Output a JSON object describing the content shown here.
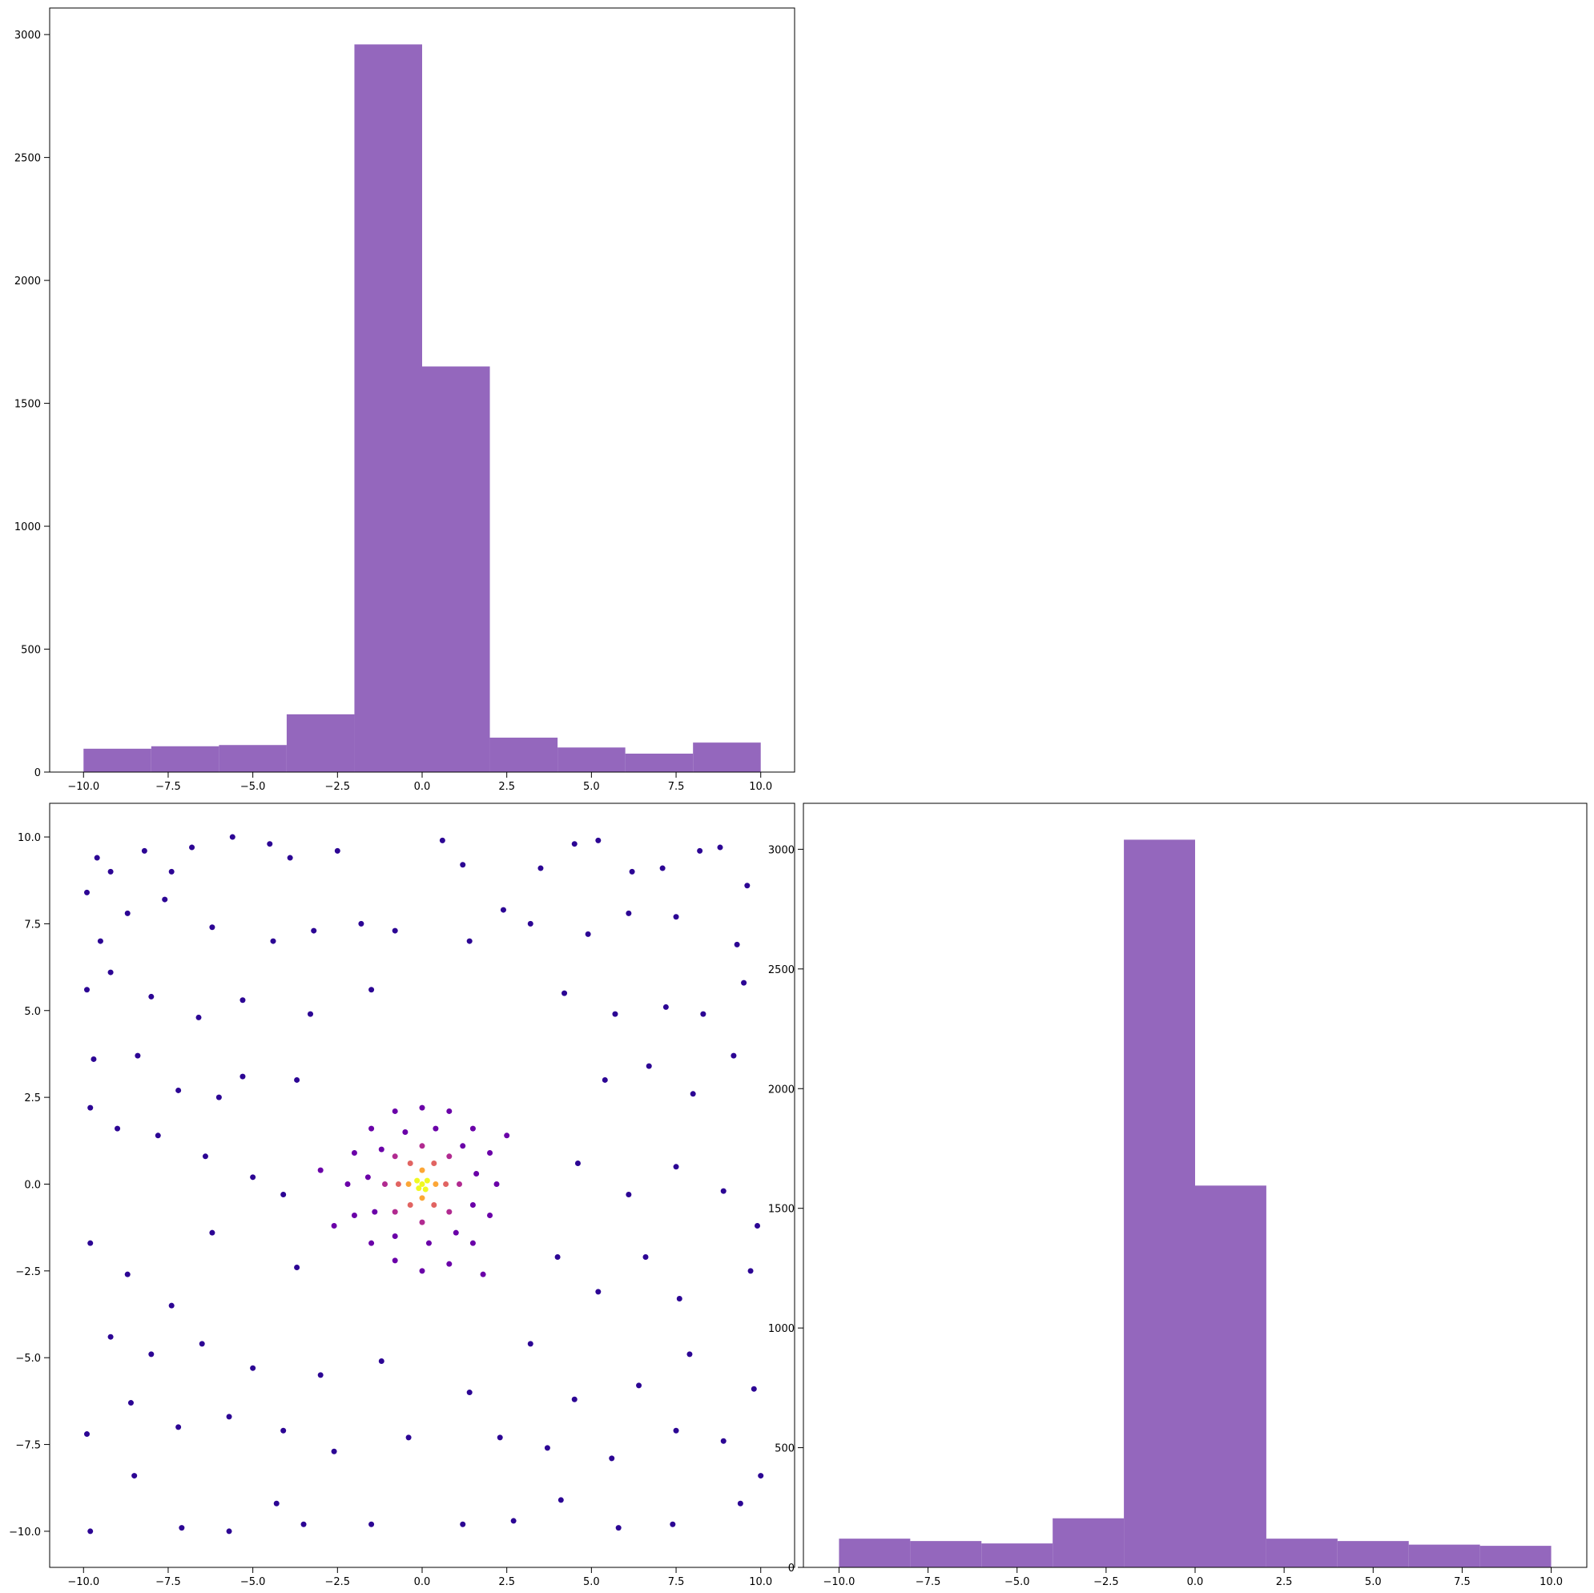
{
  "chart_data": [
    {
      "type": "histogram",
      "color": "#9467bd",
      "bins": [
        -10,
        -8,
        -6,
        -4,
        -2,
        0,
        2,
        4,
        6,
        8,
        10
      ],
      "values": [
        95,
        105,
        110,
        235,
        2960,
        1650,
        140,
        100,
        75,
        120
      ],
      "xlim": [
        -11,
        11
      ],
      "ylim": [
        0,
        3108
      ],
      "xticks": [
        {
          "value": -10,
          "label": "−10.0"
        },
        {
          "value": -7.5,
          "label": "−7.5"
        },
        {
          "value": -5,
          "label": "−5.0"
        },
        {
          "value": -2.5,
          "label": "−2.5"
        },
        {
          "value": 0,
          "label": "0.0"
        },
        2.5,
        {
          "value": 5,
          "label": "5.0"
        },
        7.5,
        {
          "value": 10,
          "label": "10.0"
        }
      ],
      "yticks": [
        0,
        500,
        1000,
        1500,
        2000,
        2500,
        3000
      ]
    },
    {
      "type": "scatter",
      "xlim": [
        -11,
        11
      ],
      "ylim": [
        -11.04,
        10.97
      ],
      "xticks": [
        {
          "value": -10,
          "label": "−10.0"
        },
        {
          "value": -7.5,
          "label": "−7.5"
        },
        {
          "value": -5,
          "label": "−5.0"
        },
        {
          "value": -2.5,
          "label": "−2.5"
        },
        {
          "value": 0,
          "label": "0.0"
        },
        2.5,
        {
          "value": 5,
          "label": "5.0"
        },
        7.5,
        {
          "value": 10,
          "label": "10.0"
        }
      ],
      "yticks": [
        {
          "value": -10,
          "label": "−10.0"
        },
        {
          "value": -7.5,
          "label": "−7.5"
        },
        {
          "value": -5,
          "label": "−5.0"
        },
        {
          "value": -2.5,
          "label": "−2.5"
        },
        {
          "value": 0,
          "label": "0.0"
        },
        2.5,
        {
          "value": 5,
          "label": "5.0"
        },
        7.5,
        {
          "value": 10,
          "label": "10.0"
        }
      ],
      "series": [
        {
          "color": "#2c0594",
          "x": [
            -9.9,
            -9.6,
            -9.2,
            -8.2,
            -7.4,
            -6.8,
            -5.6,
            -4.5,
            -3.9,
            -2.5,
            0.6,
            1.2,
            3.5,
            4.5,
            5.2,
            6.2,
            7.1,
            8.2,
            8.8,
            9.6,
            -9.5,
            -8.7,
            -7.6,
            -6.2,
            -4.4,
            -3.2,
            -1.8,
            -0.8,
            1.4,
            2.4,
            3.2,
            4.9,
            6.1,
            7.5,
            9.3,
            -9.9,
            -9.2,
            -8.0,
            -6.6,
            -5.3,
            -3.3,
            -1.5,
            4.2,
            5.7,
            7.2,
            8.3,
            9.5,
            -9.7,
            -8.4,
            -7.2,
            -6.0,
            -5.3,
            -3.7,
            5.4,
            6.7,
            8.0,
            9.2,
            -9.8,
            -9.0,
            -7.8,
            -6.4,
            -5.0,
            -4.1,
            4.6,
            6.1,
            7.5,
            8.9,
            9.9,
            -9.8,
            -8.7,
            -7.4,
            -6.2,
            -3.7,
            4.0,
            5.2,
            6.6,
            7.6,
            9.7,
            -9.2,
            -8.0,
            -6.5,
            -5.0,
            -3.0,
            -1.2,
            1.4,
            3.2,
            4.5,
            6.4,
            7.9,
            9.8,
            -9.9,
            -8.6,
            -7.2,
            -5.7,
            -4.1,
            -2.6,
            -0.4,
            2.3,
            3.7,
            5.6,
            7.5,
            8.9,
            -9.8,
            -8.5,
            -7.1,
            -5.7,
            -4.3,
            -3.5,
            -1.5,
            1.2,
            2.7,
            4.1,
            5.8,
            7.4,
            9.4,
            10.0
          ],
          "y": [
            8.4,
            9.4,
            9.0,
            9.6,
            9.0,
            9.7,
            10.0,
            9.8,
            9.4,
            9.6,
            9.9,
            9.2,
            9.1,
            9.8,
            9.9,
            9.0,
            9.1,
            9.6,
            9.7,
            8.6,
            7.0,
            7.8,
            8.2,
            7.4,
            7.0,
            7.3,
            7.5,
            7.3,
            7.0,
            7.9,
            7.5,
            7.2,
            7.8,
            7.7,
            6.9,
            5.6,
            6.1,
            5.4,
            4.8,
            5.3,
            4.9,
            5.6,
            5.5,
            4.9,
            5.1,
            4.9,
            5.8,
            3.6,
            3.7,
            2.7,
            2.5,
            3.1,
            3.0,
            3.0,
            3.4,
            2.6,
            3.7,
            2.2,
            1.6,
            1.4,
            0.8,
            0.2,
            -0.3,
            0.6,
            -0.3,
            0.5,
            -0.2,
            -1.2,
            -1.7,
            -2.6,
            -3.5,
            -1.4,
            -2.4,
            -2.1,
            -3.1,
            -2.1,
            -3.3,
            -2.5,
            -4.4,
            -4.9,
            -4.6,
            -5.3,
            -5.5,
            -5.1,
            -6.0,
            -4.6,
            -6.2,
            -5.8,
            -4.9,
            -5.9,
            -7.2,
            -6.3,
            -7.0,
            -6.7,
            -7.1,
            -7.7,
            -7.3,
            -7.3,
            -7.6,
            -7.9,
            -7.1,
            -7.4,
            -10.0,
            -8.4,
            -9.9,
            -10.0,
            -9.2,
            -9.8,
            -9.8,
            -9.8,
            -9.7,
            -9.1,
            -9.9,
            -9.8,
            -9.2,
            -8.4
          ]
        },
        {
          "color": "#6a00a8",
          "x": [
            2.2,
            2.0,
            1.5,
            0.8,
            0,
            -0.8,
            -1.5,
            -2.0,
            -2.2,
            -2.0,
            -1.5,
            -0.8,
            0,
            0.8,
            1.5,
            2.0,
            1.6,
            1.2,
            0.4,
            -0.5,
            -1.2,
            -1.6,
            -1.4,
            -0.8,
            0.2,
            1.0,
            1.5,
            -3.0,
            2.5,
            -2.6,
            1.8
          ],
          "y": [
            0,
            0.9,
            1.6,
            2.1,
            2.2,
            2.1,
            1.6,
            0.9,
            0,
            -0.9,
            -1.7,
            -2.2,
            -2.5,
            -2.3,
            -1.7,
            -0.9,
            0.3,
            1.1,
            1.6,
            1.5,
            1.0,
            0.2,
            -0.8,
            -1.5,
            -1.7,
            -1.4,
            -0.6,
            0.4,
            1.4,
            -1.2,
            -2.6
          ]
        },
        {
          "color": "#b12a90",
          "x": [
            1.1,
            0.8,
            0,
            -0.8,
            -1.1,
            -0.8,
            0,
            0.8
          ],
          "y": [
            0,
            0.8,
            1.1,
            0.8,
            0,
            -0.8,
            -1.1,
            -0.8
          ]
        },
        {
          "color": "#e16462",
          "x": [
            0.7,
            0.35,
            -0.35,
            -0.7,
            -0.35,
            0.35
          ],
          "y": [
            0,
            0.6,
            0.6,
            0,
            -0.6,
            -0.6
          ]
        },
        {
          "color": "#fca636",
          "x": [
            0.4,
            0,
            -0.4,
            0
          ],
          "y": [
            0,
            0.4,
            0,
            -0.4
          ]
        },
        {
          "color": "#f0f921",
          "x": [
            0,
            0.15,
            -0.1,
            0.1,
            -0.15
          ],
          "y": [
            0,
            0.1,
            -0.12,
            -0.15,
            0.1
          ]
        }
      ]
    },
    {
      "type": "histogram",
      "color": "#9467bd",
      "bins": [
        -10,
        -8,
        -6,
        -4,
        -2,
        0,
        2,
        4,
        6,
        8,
        10
      ],
      "values": [
        120,
        110,
        100,
        205,
        3040,
        1595,
        120,
        110,
        95,
        90
      ],
      "xlim": [
        -11,
        11
      ],
      "ylim": [
        0,
        3192
      ],
      "xticks": [
        {
          "value": -10,
          "label": "−10.0"
        },
        {
          "value": -7.5,
          "label": "−7.5"
        },
        {
          "value": -5,
          "label": "−5.0"
        },
        {
          "value": -2.5,
          "label": "−2.5"
        },
        {
          "value": 0,
          "label": "0.0"
        },
        2.5,
        {
          "value": 5,
          "label": "5.0"
        },
        7.5,
        {
          "value": 10,
          "label": "10.0"
        }
      ],
      "yticks": [
        0,
        500,
        1000,
        1500,
        2000,
        2500,
        3000
      ]
    }
  ]
}
